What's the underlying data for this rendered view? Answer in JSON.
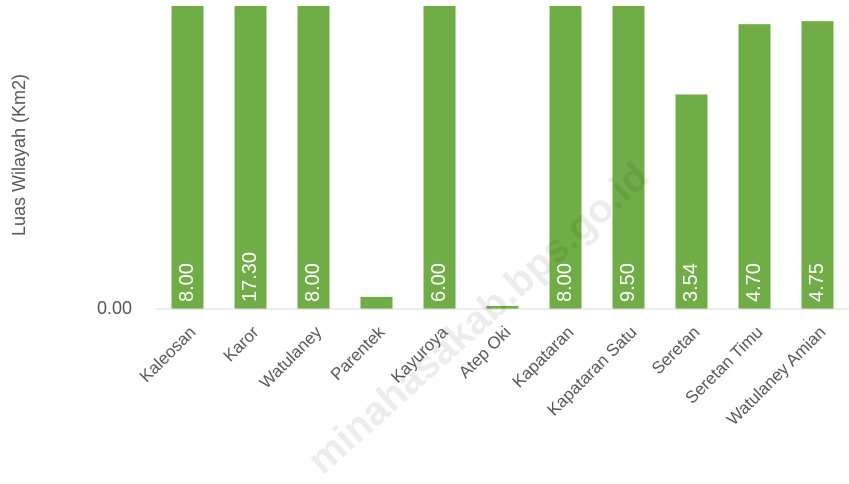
{
  "chart_data": {
    "type": "bar",
    "y_label": "Luas Wilayah (Km2)",
    "categories": [
      "Kaleosan",
      "Karor",
      "Watulaney",
      "Parentek",
      "Kayuroya",
      "Atep Oki",
      "Kapataran",
      "Kapataran Satu",
      "Seretan",
      "Seretan Timu",
      "Watulaney Amian"
    ],
    "values": [
      8.0,
      17.3,
      8.0,
      0.2,
      6.0,
      0.05,
      8.0,
      9.5,
      3.54,
      4.7,
      4.75
    ],
    "value_labels": [
      "8.00",
      "17.30",
      "8.00",
      null,
      "6.00",
      null,
      "8.00",
      "9.50",
      "3.54",
      "4.70",
      "4.75"
    ],
    "color": "#70ad47",
    "ylim": [
      0,
      5
    ],
    "yticks": [
      {
        "value": 0,
        "label": "0.00"
      }
    ],
    "watermark": "minahasakab.bps.go.id"
  }
}
